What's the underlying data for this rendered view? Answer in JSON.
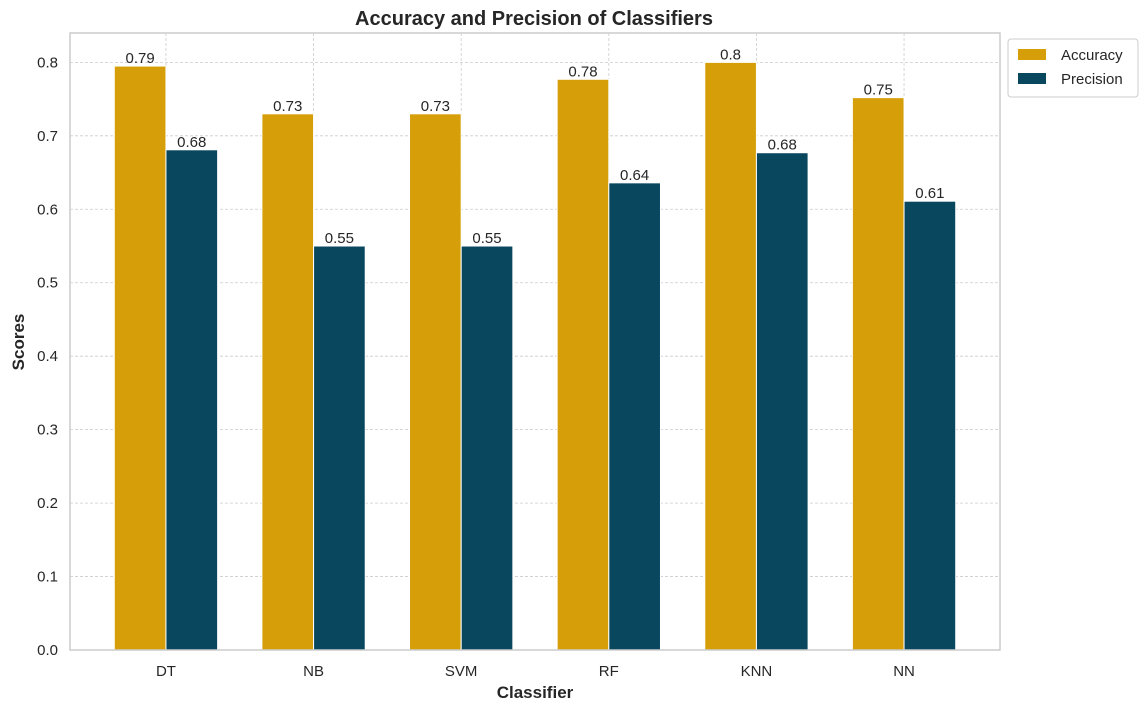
{
  "chart_data": {
    "type": "bar",
    "title": "Accuracy and Precision of Classifiers",
    "xlabel": "Classifier",
    "ylabel": "Scores",
    "categories": [
      "DT",
      "NB",
      "SVM",
      "RF",
      "KNN",
      "NN"
    ],
    "series": [
      {
        "name": "Accuracy",
        "color": "#d69f0a",
        "values": [
          0.795,
          0.73,
          0.73,
          0.777,
          0.8,
          0.752
        ],
        "labels": [
          "0.79",
          "0.73",
          "0.73",
          "0.78",
          "0.8",
          "0.75"
        ]
      },
      {
        "name": "Precision",
        "color": "#08475e",
        "values": [
          0.681,
          0.55,
          0.55,
          0.636,
          0.677,
          0.611
        ],
        "labels": [
          "0.68",
          "0.55",
          "0.55",
          "0.64",
          "0.68",
          "0.61"
        ]
      }
    ],
    "ylim": [
      0,
      0.84
    ],
    "yticks": [
      "0.0",
      "0.1",
      "0.2",
      "0.3",
      "0.4",
      "0.5",
      "0.6",
      "0.7",
      "0.8"
    ],
    "grid": true,
    "legend_position": "upper-right-outside"
  }
}
